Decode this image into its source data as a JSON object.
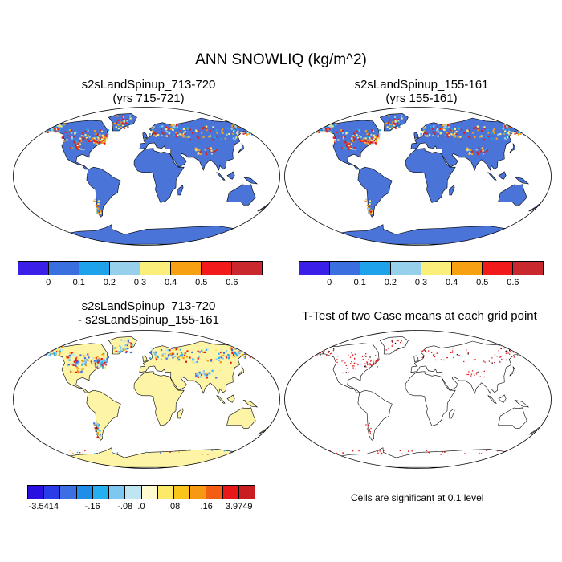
{
  "figure": {
    "title": "ANN SNOWLIQ (kg/m^2)"
  },
  "panels": [
    {
      "id": "case1",
      "title_line1": "s2sLandSpinup_713-720",
      "title_line2": "(yrs 715-721)",
      "land_fill": "#4a74d8"
    },
    {
      "id": "case2",
      "title_line1": "s2sLandSpinup_155-161",
      "title_line2": "(yrs 155-161)",
      "land_fill": "#4a74d8"
    },
    {
      "id": "difference",
      "title_line1": "s2sLandSpinup_713-720",
      "title_line2": "- s2sLandSpinup_155-161",
      "land_fill": "#fdf4a6"
    },
    {
      "id": "ttest",
      "title_line1": "T-Test of two Case means at each grid point",
      "title_line2": "",
      "land_fill": "#ffffff"
    }
  ],
  "colorbar_cases": {
    "colors": [
      "#3a1fe8",
      "#3a6fe0",
      "#1ea3ea",
      "#97d0ea",
      "#fbef7c",
      "#f7a012",
      "#f21a1a",
      "#c8282e"
    ],
    "tick_labels": [
      "0",
      "0.1",
      "0.2",
      "0.3",
      "0.4",
      "0.5",
      "0.6"
    ]
  },
  "colorbar_difference": {
    "colors": [
      "#2a10e0",
      "#2a3ce8",
      "#3b6fe3",
      "#1f8ee8",
      "#25aff0",
      "#7dc7f0",
      "#bfe4f2",
      "#fffad0",
      "#fde968",
      "#fbc41a",
      "#f79a12",
      "#f45e14",
      "#e81818",
      "#c81e22"
    ],
    "tick_labels": [
      "-3.5414",
      "-.16",
      "-.08",
      ".0",
      ".08",
      ".16",
      "3.9749"
    ]
  },
  "significance_note": "Cells are significant at 0.1 level",
  "colors": {
    "snow_low": "#4a74d8",
    "snow_high": "#e01818",
    "diff_neutral": "#fdf4a6",
    "significant": "#e01818"
  }
}
